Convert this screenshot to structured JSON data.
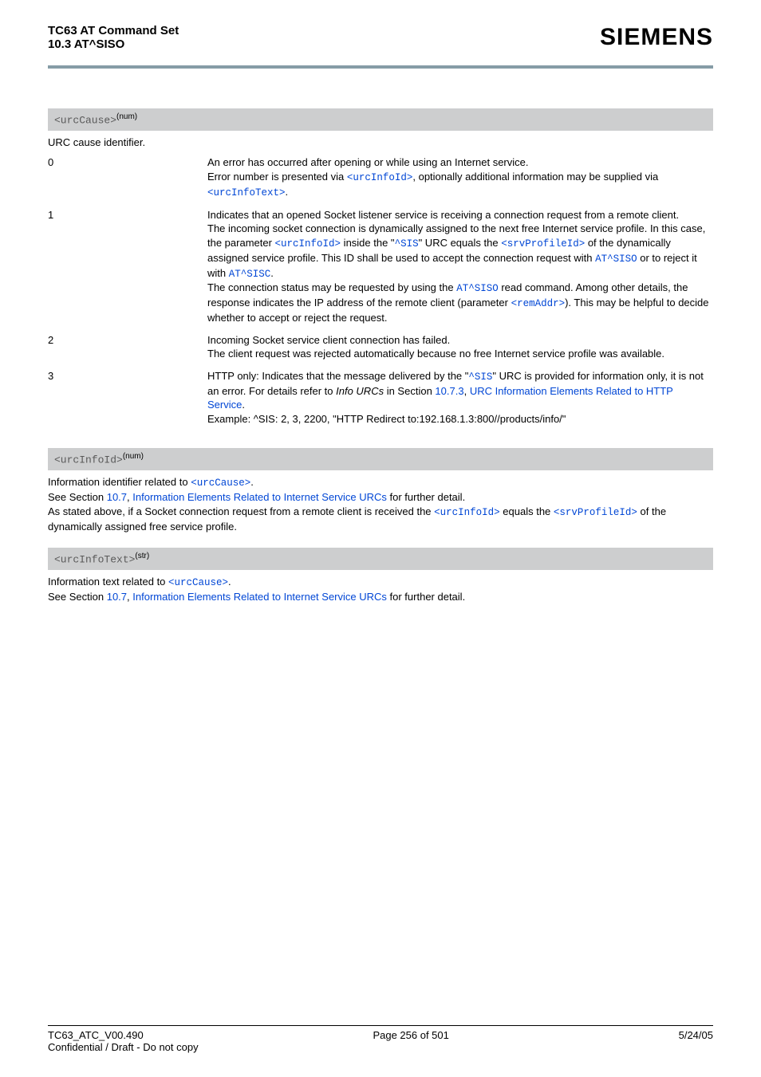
{
  "header": {
    "title": "TC63 AT Command Set",
    "subtitle": "10.3 AT^SISO",
    "logo_text": "SIEMENS"
  },
  "params": [
    {
      "name": "<urcCause>",
      "superscript": "(num)",
      "lead_text": "URC cause identifier.",
      "rows": [
        {
          "key": "0",
          "segments": [
            {
              "t": "An error has occurred after opening or while using an Internet service."
            },
            {
              "br": true
            },
            {
              "t": "Error number is presented via "
            },
            {
              "t": "<urcInfoId>",
              "cls": "mono link"
            },
            {
              "t": ", optionally additional information may be supplied via "
            },
            {
              "t": "<urcInfoText>",
              "cls": "mono link"
            },
            {
              "t": "."
            }
          ]
        },
        {
          "key": "1",
          "segments": [
            {
              "t": "Indicates that an opened Socket listener service is receiving a connection request from a remote client."
            },
            {
              "br": true
            },
            {
              "t": "The incoming socket connection is dynamically assigned to the next free Internet service profile. In this case, the parameter "
            },
            {
              "t": "<urcInfoId>",
              "cls": "mono link"
            },
            {
              "t": " inside the \""
            },
            {
              "t": "^SIS",
              "cls": "mono link"
            },
            {
              "t": "\" URC equals the "
            },
            {
              "t": "<srvProfileId>",
              "cls": "mono link"
            },
            {
              "t": " of the dynamically assigned service profile. This ID shall be used to accept the connection request with "
            },
            {
              "t": "AT^SISO",
              "cls": "mono link"
            },
            {
              "t": " or to reject it with "
            },
            {
              "t": "AT^SISC",
              "cls": "mono link"
            },
            {
              "t": "."
            },
            {
              "br": true
            },
            {
              "t": "The connection status may be requested by using the "
            },
            {
              "t": "AT^SISO",
              "cls": "mono link"
            },
            {
              "t": " read command. Among other details, the response indicates the IP address of the remote client (parameter "
            },
            {
              "t": "<remAddr>",
              "cls": "mono link"
            },
            {
              "t": "). This may be helpful to decide whether to accept or reject the request."
            }
          ]
        },
        {
          "key": "2",
          "segments": [
            {
              "t": "Incoming Socket service client connection has failed."
            },
            {
              "br": true
            },
            {
              "t": "The client request was rejected automatically because no free Internet service profile was available."
            }
          ]
        },
        {
          "key": "3",
          "segments": [
            {
              "t": "HTTP only: Indicates that the message delivered by the \""
            },
            {
              "t": "^SIS",
              "cls": "mono link"
            },
            {
              "t": "\" URC is provided for information only, it is not an error. For details refer to "
            },
            {
              "t": "Info URCs",
              "cls": "",
              "style": "font-style:italic"
            },
            {
              "t": " in Section "
            },
            {
              "t": "10.7.3",
              "cls": "link"
            },
            {
              "t": ", "
            },
            {
              "t": "URC Information Elements Related to HTTP Service",
              "cls": "link"
            },
            {
              "t": "."
            },
            {
              "br": true
            },
            {
              "t": "Example: ^SIS: 2, 3, 2200, \"HTTP Redirect to:192.168.1.3:800//products/info/\""
            }
          ]
        }
      ]
    },
    {
      "name": "<urcInfoId>",
      "superscript": "(num)",
      "info_segments": [
        {
          "t": "Information identifier related to "
        },
        {
          "t": "<urcCause>",
          "cls": "mono link"
        },
        {
          "t": "."
        },
        {
          "br": true
        },
        {
          "t": "See Section "
        },
        {
          "t": "10.7",
          "cls": "link"
        },
        {
          "t": ", "
        },
        {
          "t": "Information Elements Related to Internet Service URCs",
          "cls": "link"
        },
        {
          "t": " for further detail."
        },
        {
          "br": true
        },
        {
          "t": "As stated above, if a Socket connection request from a remote client is received the "
        },
        {
          "t": "<urcInfoId>",
          "cls": "mono link"
        },
        {
          "t": " equals the "
        },
        {
          "t": "<srvProfileId>",
          "cls": "mono link"
        },
        {
          "t": " of the dynamically assigned free service profile."
        }
      ]
    },
    {
      "name": "<urcInfoText>",
      "superscript": "(str)",
      "info_segments": [
        {
          "t": "Information text related to "
        },
        {
          "t": "<urcCause>",
          "cls": "mono link"
        },
        {
          "t": "."
        },
        {
          "br": true
        },
        {
          "t": "See Section "
        },
        {
          "t": "10.7",
          "cls": "link"
        },
        {
          "t": ", "
        },
        {
          "t": "Information Elements Related to Internet Service URCs",
          "cls": "link"
        },
        {
          "t": " for further detail."
        }
      ]
    }
  ],
  "footer": {
    "left1": "TC63_ATC_V00.490",
    "center": "Page 256 of 501",
    "right": "5/24/05",
    "left2": "Confidential / Draft - Do not copy"
  },
  "colors": {
    "rule": "#869ca6",
    "param_bg": "#cdcecf",
    "link": "#0046d5"
  }
}
